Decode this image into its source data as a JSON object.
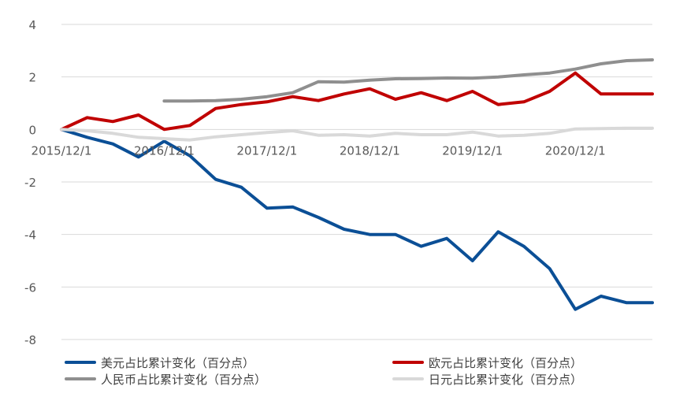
{
  "chart_data": {
    "type": "line",
    "title": "",
    "xlabel": "",
    "ylabel": "",
    "ylim": [
      -8,
      4
    ],
    "yticks": [
      4,
      2,
      0,
      -2,
      -4,
      -6,
      -8
    ],
    "grid": "horizontal",
    "legend_position": "bottom",
    "x_tick_labels": [
      "2015/12/1",
      "2016/12/1",
      "2017/12/1",
      "2018/12/1",
      "2019/12/1",
      "2020/12/1"
    ],
    "x": [
      "2015/12/1",
      "2016/3/1",
      "2016/6/1",
      "2016/9/1",
      "2016/12/1",
      "2017/3/1",
      "2017/6/1",
      "2017/9/1",
      "2017/12/1",
      "2018/3/1",
      "2018/6/1",
      "2018/9/1",
      "2018/12/1",
      "2019/3/1",
      "2019/6/1",
      "2019/9/1",
      "2019/12/1",
      "2020/3/1",
      "2020/6/1",
      "2020/9/1",
      "2020/12/1",
      "2021/3/1",
      "2021/6/1",
      "2021/9/1"
    ],
    "series": [
      {
        "name": "美元占比累计变化（百分点）",
        "color": "#0B4F96",
        "values": [
          0,
          -0.3,
          -0.55,
          -1.05,
          -0.45,
          -1.0,
          -1.9,
          -2.2,
          -3.0,
          -2.95,
          -3.35,
          -3.8,
          -4.0,
          -4.0,
          -4.45,
          -4.15,
          -5.0,
          -3.9,
          -4.45,
          -5.3,
          -6.85,
          -6.35,
          -6.6,
          -6.6
        ]
      },
      {
        "name": "欧元占比累计变化（百分点）",
        "color": "#C00000",
        "values": [
          0,
          0.45,
          0.3,
          0.55,
          0.0,
          0.15,
          0.8,
          0.95,
          1.05,
          1.25,
          1.1,
          1.35,
          1.55,
          1.15,
          1.4,
          1.1,
          1.45,
          0.95,
          1.05,
          1.45,
          2.15,
          1.35,
          1.35,
          1.35
        ]
      },
      {
        "name": "人民币占比累计变化（百分点）",
        "color": "#8F8F8F",
        "values": [
          null,
          null,
          null,
          null,
          1.08,
          1.08,
          1.1,
          1.15,
          1.25,
          1.4,
          1.82,
          1.8,
          1.88,
          1.93,
          1.94,
          1.96,
          1.95,
          2.0,
          2.08,
          2.15,
          2.3,
          2.5,
          2.62,
          2.65
        ]
      },
      {
        "name": "日元占比累计变化（百分点）",
        "color": "#D9D9D9",
        "values": [
          0,
          -0.05,
          -0.15,
          -0.3,
          -0.35,
          -0.4,
          -0.28,
          -0.2,
          -0.12,
          -0.05,
          -0.22,
          -0.2,
          -0.25,
          -0.15,
          -0.2,
          -0.2,
          -0.1,
          -0.25,
          -0.22,
          -0.15,
          0.02,
          0.03,
          0.05,
          0.05
        ]
      }
    ]
  }
}
